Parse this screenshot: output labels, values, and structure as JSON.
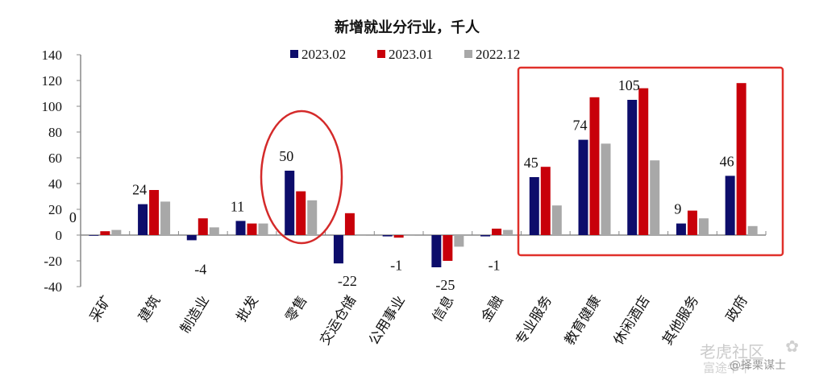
{
  "chart_data": {
    "type": "bar",
    "title": "新增就业分行业，千人",
    "xlabel": "",
    "ylabel": "",
    "ylim": [
      -40,
      140
    ],
    "yticks": [
      -40,
      -20,
      0,
      20,
      40,
      60,
      80,
      100,
      120,
      140
    ],
    "grid": false,
    "legend_position": "top",
    "categories": [
      "采矿",
      "建筑",
      "制造业",
      "批发",
      "零售",
      "交运仓储",
      "公用事业",
      "信息",
      "金融",
      "专业服务",
      "教育健康",
      "休闲酒店",
      "其他服务",
      "政府"
    ],
    "series": [
      {
        "name": "2023.02",
        "color": "#0d0d6b",
        "values": [
          0,
          24,
          -4,
          11,
          50,
          -22,
          -1,
          -25,
          -1,
          45,
          74,
          105,
          9,
          46
        ]
      },
      {
        "name": "2023.01",
        "color": "#c8000a",
        "values": [
          3,
          35,
          13,
          9,
          34,
          17,
          -2,
          -20,
          5,
          53,
          107,
          114,
          19,
          118
        ]
      },
      {
        "name": "2022.12",
        "color": "#a8a8a8",
        "values": [
          4,
          26,
          6,
          9,
          27,
          0,
          0,
          -9,
          4,
          23,
          71,
          58,
          13,
          7
        ]
      }
    ],
    "data_labels": [
      "0",
      "24",
      "-4",
      "11",
      "50",
      "-22",
      "-1",
      "-25",
      "-1",
      "45",
      "74",
      "105",
      "9",
      "46"
    ],
    "annotations": [
      {
        "type": "ellipse",
        "target": "零售",
        "color": "#d42a2a"
      },
      {
        "type": "rectangle",
        "target": [
          "专业服务",
          "政府"
        ],
        "color": "#e0302a"
      }
    ]
  },
  "watermark": [
    "老虎社区",
    "富途牛牛",
    "@择栗谋士"
  ]
}
